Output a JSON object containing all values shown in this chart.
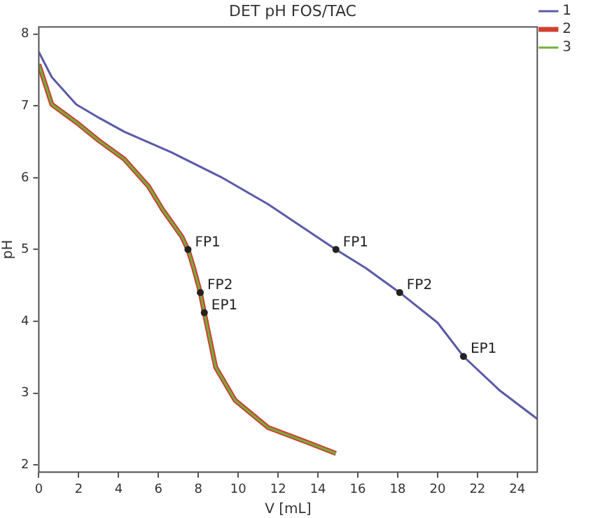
{
  "chart_data": {
    "type": "line",
    "title": "DET pH FOS/TAC",
    "xlabel": "V [mL]",
    "ylabel": "pH",
    "xlim": [
      0,
      25
    ],
    "xticks": [
      0,
      2,
      4,
      6,
      8,
      10,
      12,
      14,
      16,
      18,
      20,
      22,
      24
    ],
    "ylim": [
      1.9,
      8.1
    ],
    "yticks": [
      2,
      3,
      4,
      5,
      6,
      7,
      8
    ],
    "grid": false,
    "legend": "right",
    "marker": "none",
    "line_style": "solid",
    "series": [
      {
        "name": "1",
        "color": "#5a5aa8",
        "x": [
          0,
          0.65,
          1.88,
          3.04,
          4.28,
          6.67,
          9.13,
          11.5,
          14.9,
          16.4,
          18.1,
          20.0,
          21.3,
          23.1,
          25
        ],
        "values": [
          7.75,
          7.4,
          7.02,
          6.83,
          6.64,
          6.35,
          6.01,
          5.63,
          5.0,
          4.74,
          4.4,
          3.98,
          3.51,
          3.04,
          2.64
        ]
      },
      {
        "name": "2",
        "color": "#d04030",
        "x": [
          0,
          0.65,
          1.88,
          3.04,
          4.28,
          5.5,
          6.2,
          7.17,
          7.48,
          7.77,
          8.1,
          8.3,
          8.87,
          9.84,
          11.5,
          13.5,
          14.9
        ],
        "values": [
          7.58,
          7.02,
          6.77,
          6.51,
          6.26,
          5.88,
          5.56,
          5.18,
          5.0,
          4.74,
          4.4,
          4.12,
          3.36,
          2.9,
          2.52,
          2.31,
          2.16
        ]
      },
      {
        "name": "3",
        "color": "#70b040",
        "x": [
          0,
          0.65,
          1.88,
          3.04,
          4.28,
          5.5,
          6.2,
          7.17,
          7.48,
          7.77,
          8.1,
          8.3,
          8.87,
          9.84,
          11.5,
          13.5,
          14.9
        ],
        "values": [
          7.58,
          7.02,
          6.77,
          6.51,
          6.26,
          5.88,
          5.56,
          5.18,
          5.0,
          4.74,
          4.4,
          4.12,
          3.36,
          2.9,
          2.52,
          2.31,
          2.16
        ]
      }
    ],
    "annotations": [
      {
        "text": "FP1",
        "x": 7.48,
        "y": 5.0
      },
      {
        "text": "FP2",
        "x": 8.1,
        "y": 4.4
      },
      {
        "text": "EP1",
        "x": 8.3,
        "y": 4.12
      },
      {
        "text": "FP1",
        "x": 14.9,
        "y": 5.0
      },
      {
        "text": "FP2",
        "x": 18.1,
        "y": 4.4
      },
      {
        "text": "EP1",
        "x": 21.3,
        "y": 3.51
      }
    ]
  }
}
